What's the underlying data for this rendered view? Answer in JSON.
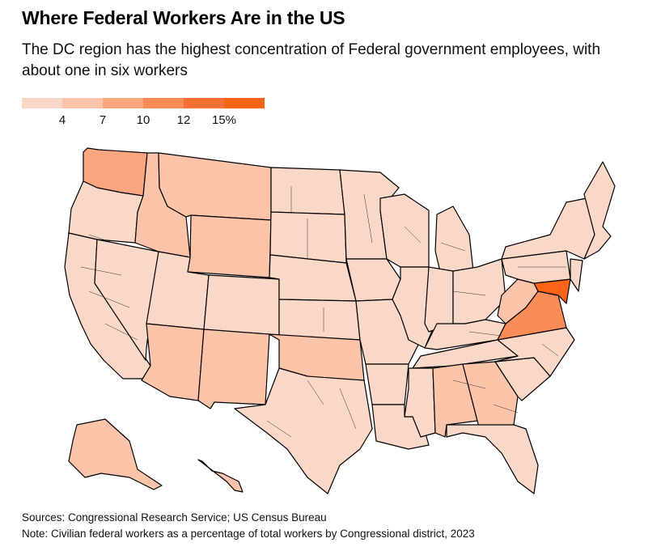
{
  "title": "Where Federal Workers Are in the US",
  "subtitle": "The DC region has the highest concentration of Federal government employees, with about one in six workers",
  "legend": {
    "colors": [
      "#fad8c8",
      "#fbc4a8",
      "#fba57e",
      "#fb8b57",
      "#fa7135",
      "#fa6414"
    ],
    "labels": [
      "4",
      "7",
      "10",
      "12",
      "15%"
    ]
  },
  "map_regions": [
    {
      "name": "Washington",
      "level": 2
    },
    {
      "name": "Oregon",
      "level": 0
    },
    {
      "name": "California",
      "level": 0
    },
    {
      "name": "Nevada",
      "level": 0
    },
    {
      "name": "Idaho",
      "level": 1
    },
    {
      "name": "Montana",
      "level": 1
    },
    {
      "name": "Wyoming",
      "level": 1
    },
    {
      "name": "Utah",
      "level": 0
    },
    {
      "name": "Colorado",
      "level": 0
    },
    {
      "name": "Arizona",
      "level": 1
    },
    {
      "name": "New Mexico",
      "level": 1
    },
    {
      "name": "North Dakota",
      "level": 0
    },
    {
      "name": "South Dakota",
      "level": 0
    },
    {
      "name": "Nebraska",
      "level": 0
    },
    {
      "name": "Kansas",
      "level": 0
    },
    {
      "name": "Oklahoma",
      "level": 1
    },
    {
      "name": "Texas",
      "level": 0
    },
    {
      "name": "Minnesota",
      "level": 0
    },
    {
      "name": "Iowa",
      "level": 0
    },
    {
      "name": "Missouri",
      "level": 0
    },
    {
      "name": "Arkansas",
      "level": 0
    },
    {
      "name": "Louisiana",
      "level": 0
    },
    {
      "name": "Wisconsin",
      "level": 0
    },
    {
      "name": "Illinois",
      "level": 0
    },
    {
      "name": "Michigan",
      "level": 0
    },
    {
      "name": "Indiana",
      "level": 0
    },
    {
      "name": "Ohio",
      "level": 0
    },
    {
      "name": "Kentucky",
      "level": 0
    },
    {
      "name": "Tennessee",
      "level": 0
    },
    {
      "name": "Mississippi",
      "level": 0
    },
    {
      "name": "Alabama",
      "level": 1
    },
    {
      "name": "Georgia",
      "level": 1
    },
    {
      "name": "Florida",
      "level": 0
    },
    {
      "name": "South Carolina",
      "level": 0
    },
    {
      "name": "North Carolina",
      "level": 0
    },
    {
      "name": "Virginia",
      "level": 3
    },
    {
      "name": "West Virginia",
      "level": 1
    },
    {
      "name": "Maryland",
      "level": 5
    },
    {
      "name": "Pennsylvania",
      "level": 0
    },
    {
      "name": "New York",
      "level": 0
    },
    {
      "name": "New Jersey",
      "level": 0
    },
    {
      "name": "New England",
      "level": 0
    },
    {
      "name": "Alaska",
      "level": 1
    },
    {
      "name": "Hawaii",
      "level": 1
    }
  ],
  "source": "Sources: Congressional Research Service; US Census Bureau",
  "note": "Note: Civilian federal workers as a percentage of total workers by Congressional district, 2023"
}
